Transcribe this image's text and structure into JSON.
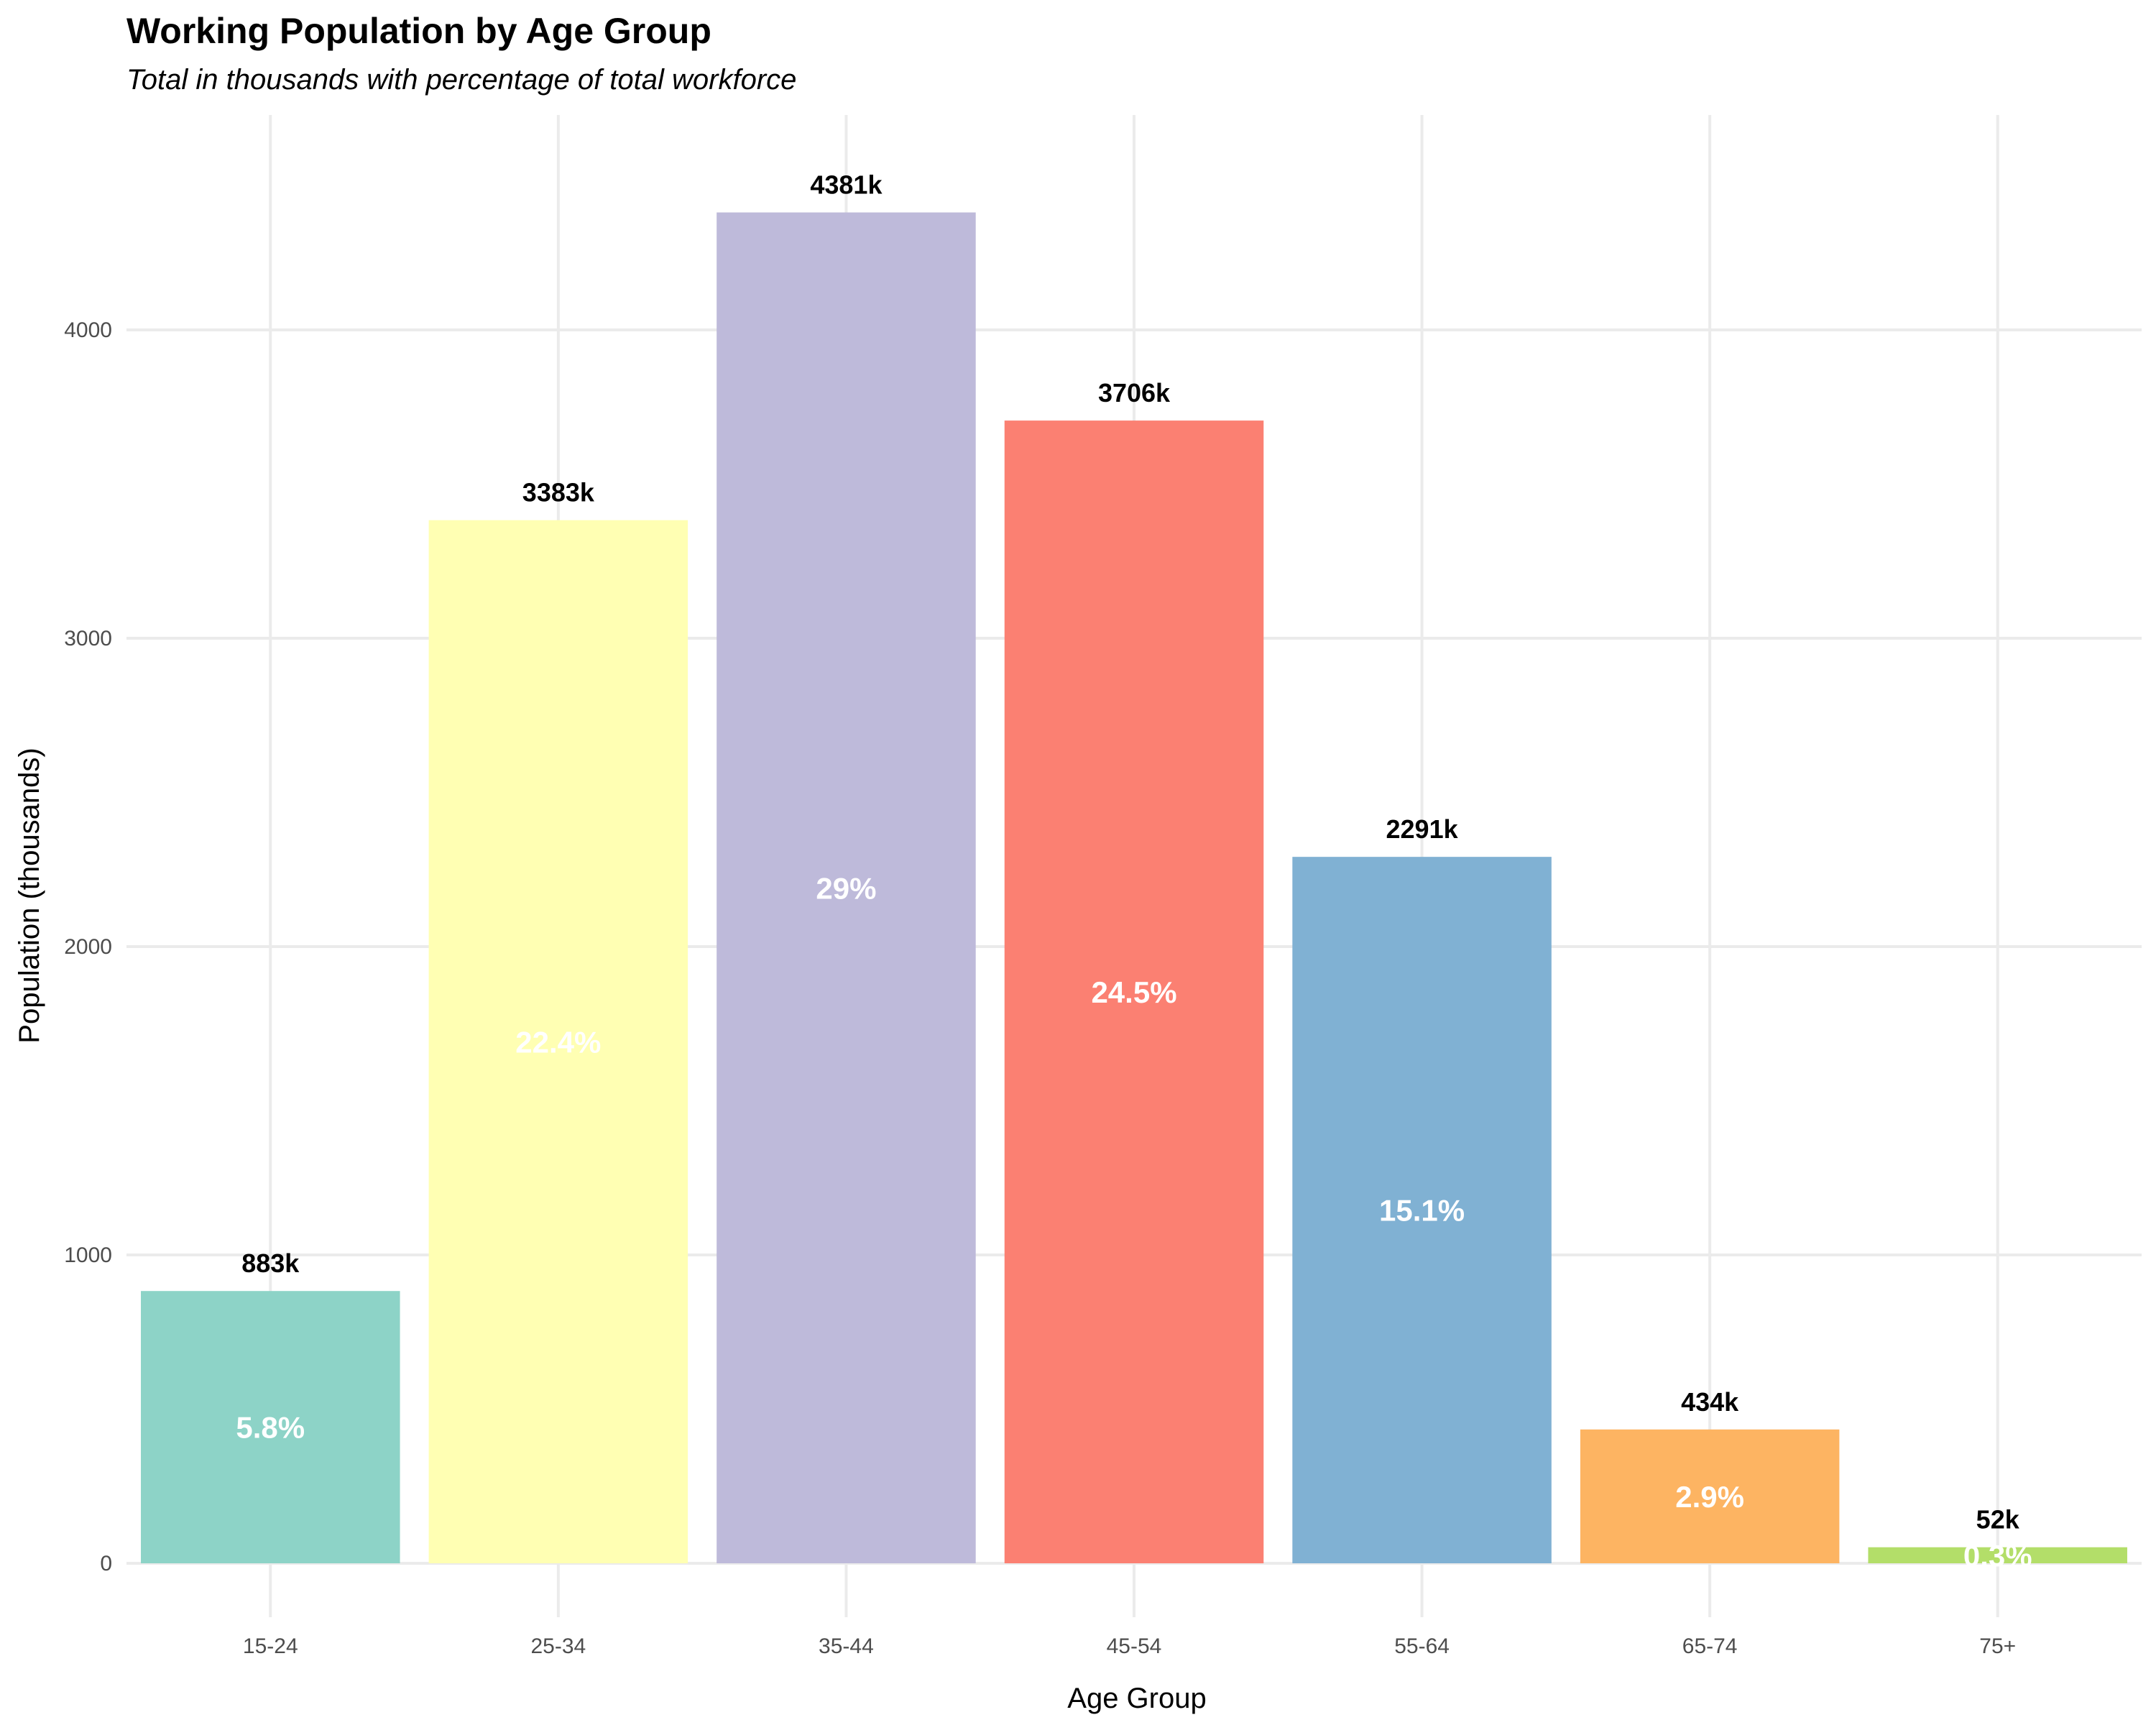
{
  "chart_data": {
    "type": "bar",
    "title": "Working Population by Age Group",
    "subtitle": "Total in thousands with percentage of total workforce",
    "xlabel": "Age Group",
    "ylabel": "Population (thousands)",
    "categories": [
      "15-24",
      "25-34",
      "35-44",
      "45-54",
      "55-64",
      "65-74",
      "75+"
    ],
    "values": [
      883,
      3383,
      4381,
      3706,
      2291,
      434,
      52
    ],
    "value_labels": [
      "883k",
      "3383k",
      "4381k",
      "3706k",
      "2291k",
      "434k",
      "52k"
    ],
    "percent_labels": [
      "5.8%",
      "22.4%",
      "29%",
      "24.5%",
      "15.1%",
      "2.9%",
      "0.3%"
    ],
    "colors": [
      "#8DD3C7",
      "#FFFFB3",
      "#BEBADA",
      "#FB8072",
      "#80B1D3",
      "#FDB462",
      "#B3DE69"
    ],
    "yticks": [
      0,
      1000,
      2000,
      3000,
      4000
    ],
    "ytick_labels": [
      "0",
      "1000",
      "2000",
      "3000",
      "4000"
    ],
    "ylim": [
      -200,
      4600
    ],
    "grid": true,
    "legend": "none"
  }
}
